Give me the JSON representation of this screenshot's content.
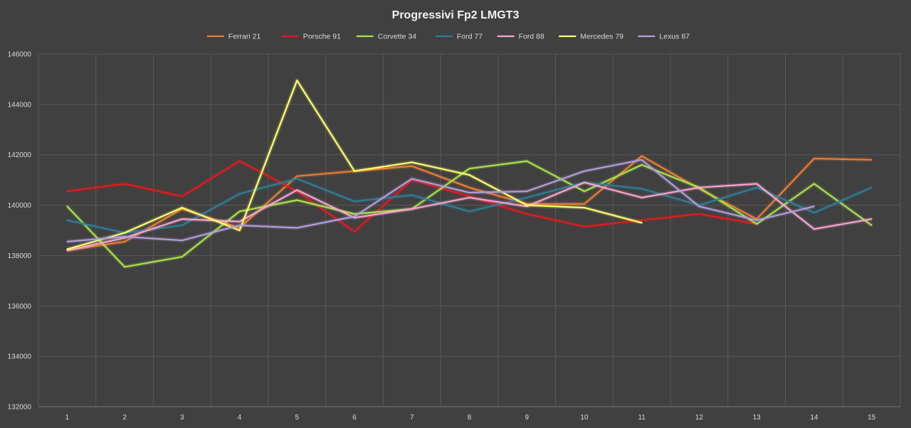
{
  "chart_data": {
    "type": "line",
    "title": "Progressivi Fp2 LMGT3",
    "xlabel": "",
    "ylabel": "",
    "ylim": [
      132000,
      146000
    ],
    "y_ticks": [
      "132000",
      "134000",
      "136000",
      "138000",
      "140000",
      "142000",
      "144000",
      "146000"
    ],
    "x": [
      1,
      2,
      3,
      4,
      5,
      6,
      7,
      8,
      9,
      10,
      11,
      12,
      13,
      14,
      15
    ],
    "grid": true,
    "legend_position": "top",
    "series": [
      {
        "name": "Ferrari 21",
        "color": "#ed7d31",
        "values": [
          138200,
          138550,
          139850,
          139100,
          141150,
          141350,
          141550,
          140700,
          140050,
          140050,
          141950,
          140650,
          139450,
          141850,
          141800
        ]
      },
      {
        "name": "Porsche 91",
        "color": "#e31a1c",
        "values": [
          140550,
          140850,
          140350,
          141750,
          140550,
          138950,
          141000,
          140350,
          139650,
          139150,
          139400,
          139650,
          139250,
          null,
          null
        ]
      },
      {
        "name": "Corvette 34",
        "color": "#a9e34b",
        "values": [
          139950,
          137550,
          137950,
          139750,
          140200,
          139650,
          139850,
          141450,
          141750,
          140550,
          141600,
          140700,
          139250,
          140850,
          139200
        ]
      },
      {
        "name": "Ford 77",
        "color": "#2e7d99",
        "values": [
          139400,
          138900,
          139200,
          140450,
          141050,
          140150,
          140400,
          139750,
          140300,
          140900,
          140650,
          140000,
          140700,
          139700,
          140700
        ]
      },
      {
        "name": "Ford 88",
        "color": "#f8a5d0",
        "values": [
          138200,
          138700,
          139450,
          139350,
          140600,
          139500,
          139850,
          140300,
          139950,
          140900,
          140300,
          140700,
          140850,
          139050,
          139450
        ]
      },
      {
        "name": "Mercedes 79",
        "color": "#ffff70",
        "values": [
          138250,
          138900,
          139900,
          139000,
          144950,
          141350,
          141700,
          141200,
          140000,
          139900,
          139300,
          null,
          null,
          null,
          null
        ]
      },
      {
        "name": "Lexus 87",
        "color": "#b39ddb",
        "values": [
          138550,
          138750,
          138600,
          139200,
          139100,
          139550,
          141050,
          140500,
          140550,
          141350,
          141800,
          139950,
          139400,
          139950,
          null
        ]
      }
    ]
  }
}
